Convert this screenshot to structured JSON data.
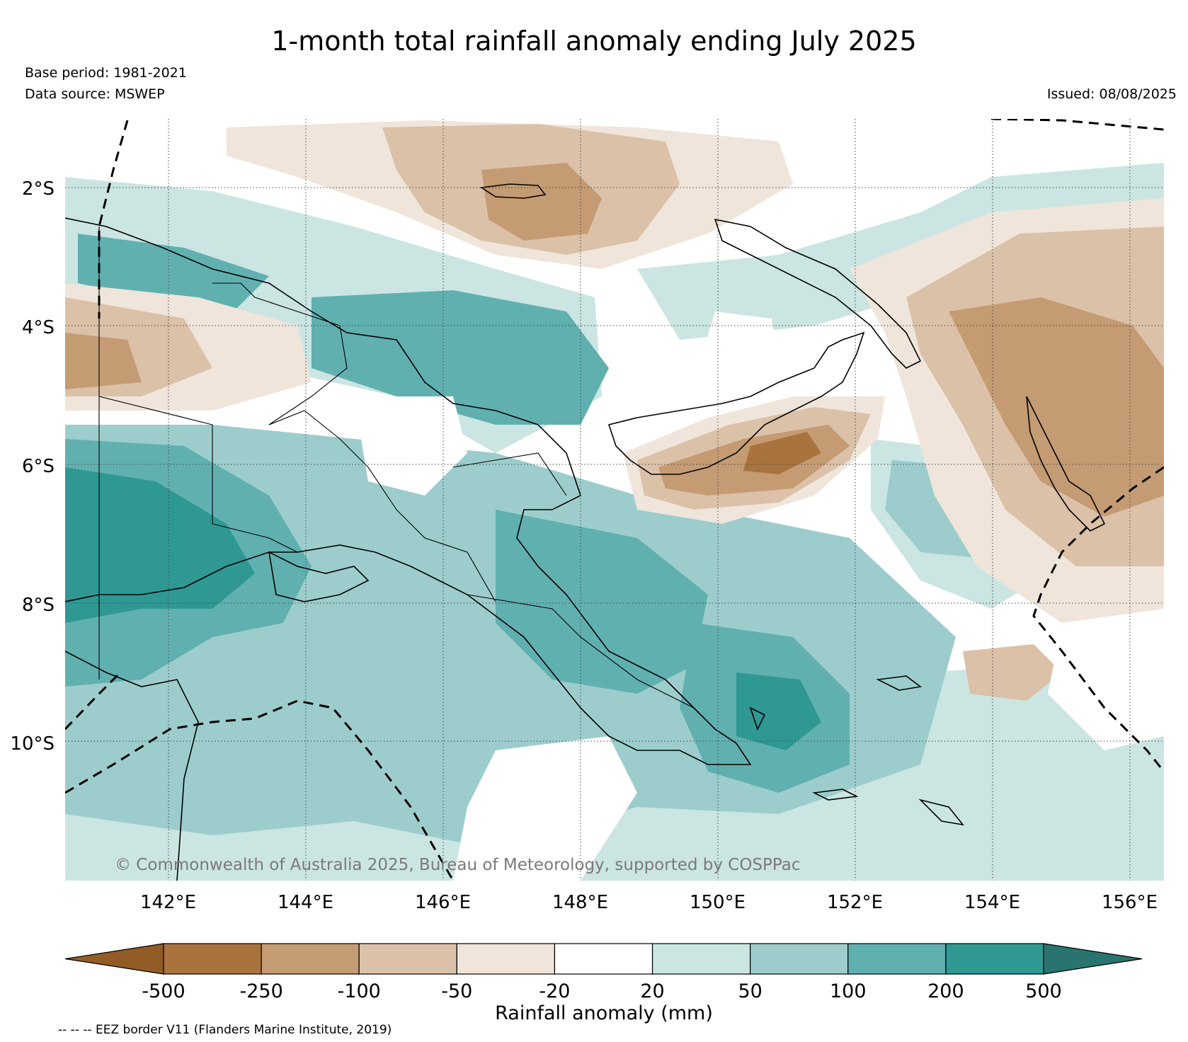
{
  "title": "1-month total rainfall anomaly ending July 2025",
  "base_period": "Base period: 1981-2021",
  "data_source": "Data source: MSWEP",
  "issued": "Issued: 08/08/2025",
  "credit": "© Commonwealth of Australia 2025, Bureau of Meteorology, supported by COSPPac",
  "eez_note": "-- -- -- EEZ border V11 (Flanders Marine Institute, 2019)",
  "map": {
    "lon_labels": [
      "142°E",
      "144°E",
      "146°E",
      "148°E",
      "150°E",
      "152°E",
      "154°E",
      "156°E"
    ],
    "lat_labels": [
      "2°S",
      "4°S",
      "6°S",
      "8°S",
      "10°S"
    ],
    "lon_values": [
      142,
      144,
      146,
      148,
      150,
      152,
      154,
      156
    ],
    "lat_values": [
      -2,
      -4,
      -6,
      -8,
      -10
    ],
    "lon_range": [
      140.5,
      156.5
    ],
    "lat_range": [
      -11.98,
      -1.0
    ]
  },
  "colorbar": {
    "label": "Rainfall anomaly (mm)",
    "ticks": [
      "-500",
      "-250",
      "-100",
      "-50",
      "-20",
      "20",
      "50",
      "100",
      "200",
      "500"
    ],
    "colors": [
      "#925c27",
      "#a8733d",
      "#c49b72",
      "#dbc1a8",
      "#f0e5db",
      "#ffffff",
      "#cbe5e3",
      "#9ccdcc",
      "#61b0b0",
      "#2f9893",
      "#29746e"
    ]
  }
}
